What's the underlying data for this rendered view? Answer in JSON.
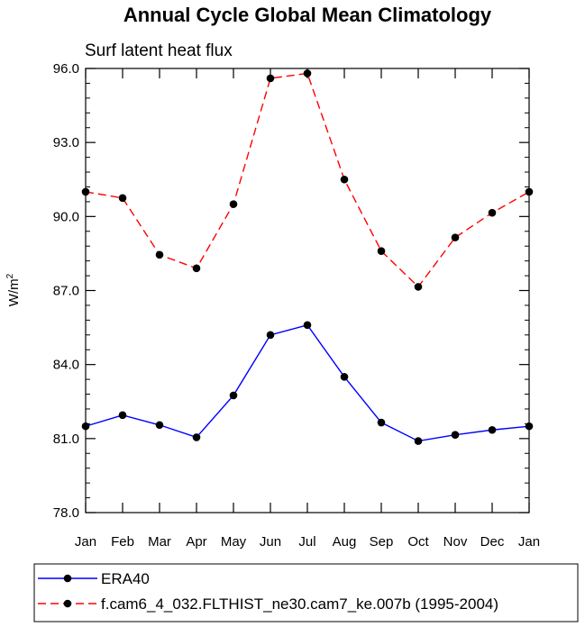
{
  "chart_data": {
    "type": "line",
    "title": "Annual Cycle Global Mean Climatology",
    "subtitle": "Surf latent heat flux",
    "ylabel": "W/m",
    "ylabel_sup": "2",
    "xlabel": "",
    "categories": [
      "Jan",
      "Feb",
      "Mar",
      "Apr",
      "May",
      "Jun",
      "Jul",
      "Aug",
      "Sep",
      "Oct",
      "Nov",
      "Dec",
      "Jan"
    ],
    "ylim": [
      78.0,
      96.0
    ],
    "yticks": [
      "78.0",
      "81.0",
      "84.0",
      "87.0",
      "90.0",
      "93.0",
      "96.0"
    ],
    "ytick_values": [
      78,
      81,
      84,
      87,
      90,
      93,
      96
    ],
    "grid": false,
    "legend_position": "bottom",
    "series": [
      {
        "name": "ERA40",
        "color": "#0000ff",
        "dash": "solid",
        "values": [
          81.5,
          81.95,
          81.55,
          81.05,
          82.75,
          85.2,
          85.6,
          83.5,
          81.65,
          80.9,
          81.15,
          81.35,
          81.5
        ]
      },
      {
        "name": "f.cam6_4_032.FLTHIST_ne30.cam7_ke.007b (1995-2004)",
        "color": "#ff0000",
        "dash": "dashed",
        "values": [
          91.0,
          90.75,
          88.45,
          87.9,
          90.5,
          95.6,
          95.8,
          91.5,
          88.6,
          87.15,
          89.15,
          90.15,
          91.0
        ]
      }
    ]
  }
}
